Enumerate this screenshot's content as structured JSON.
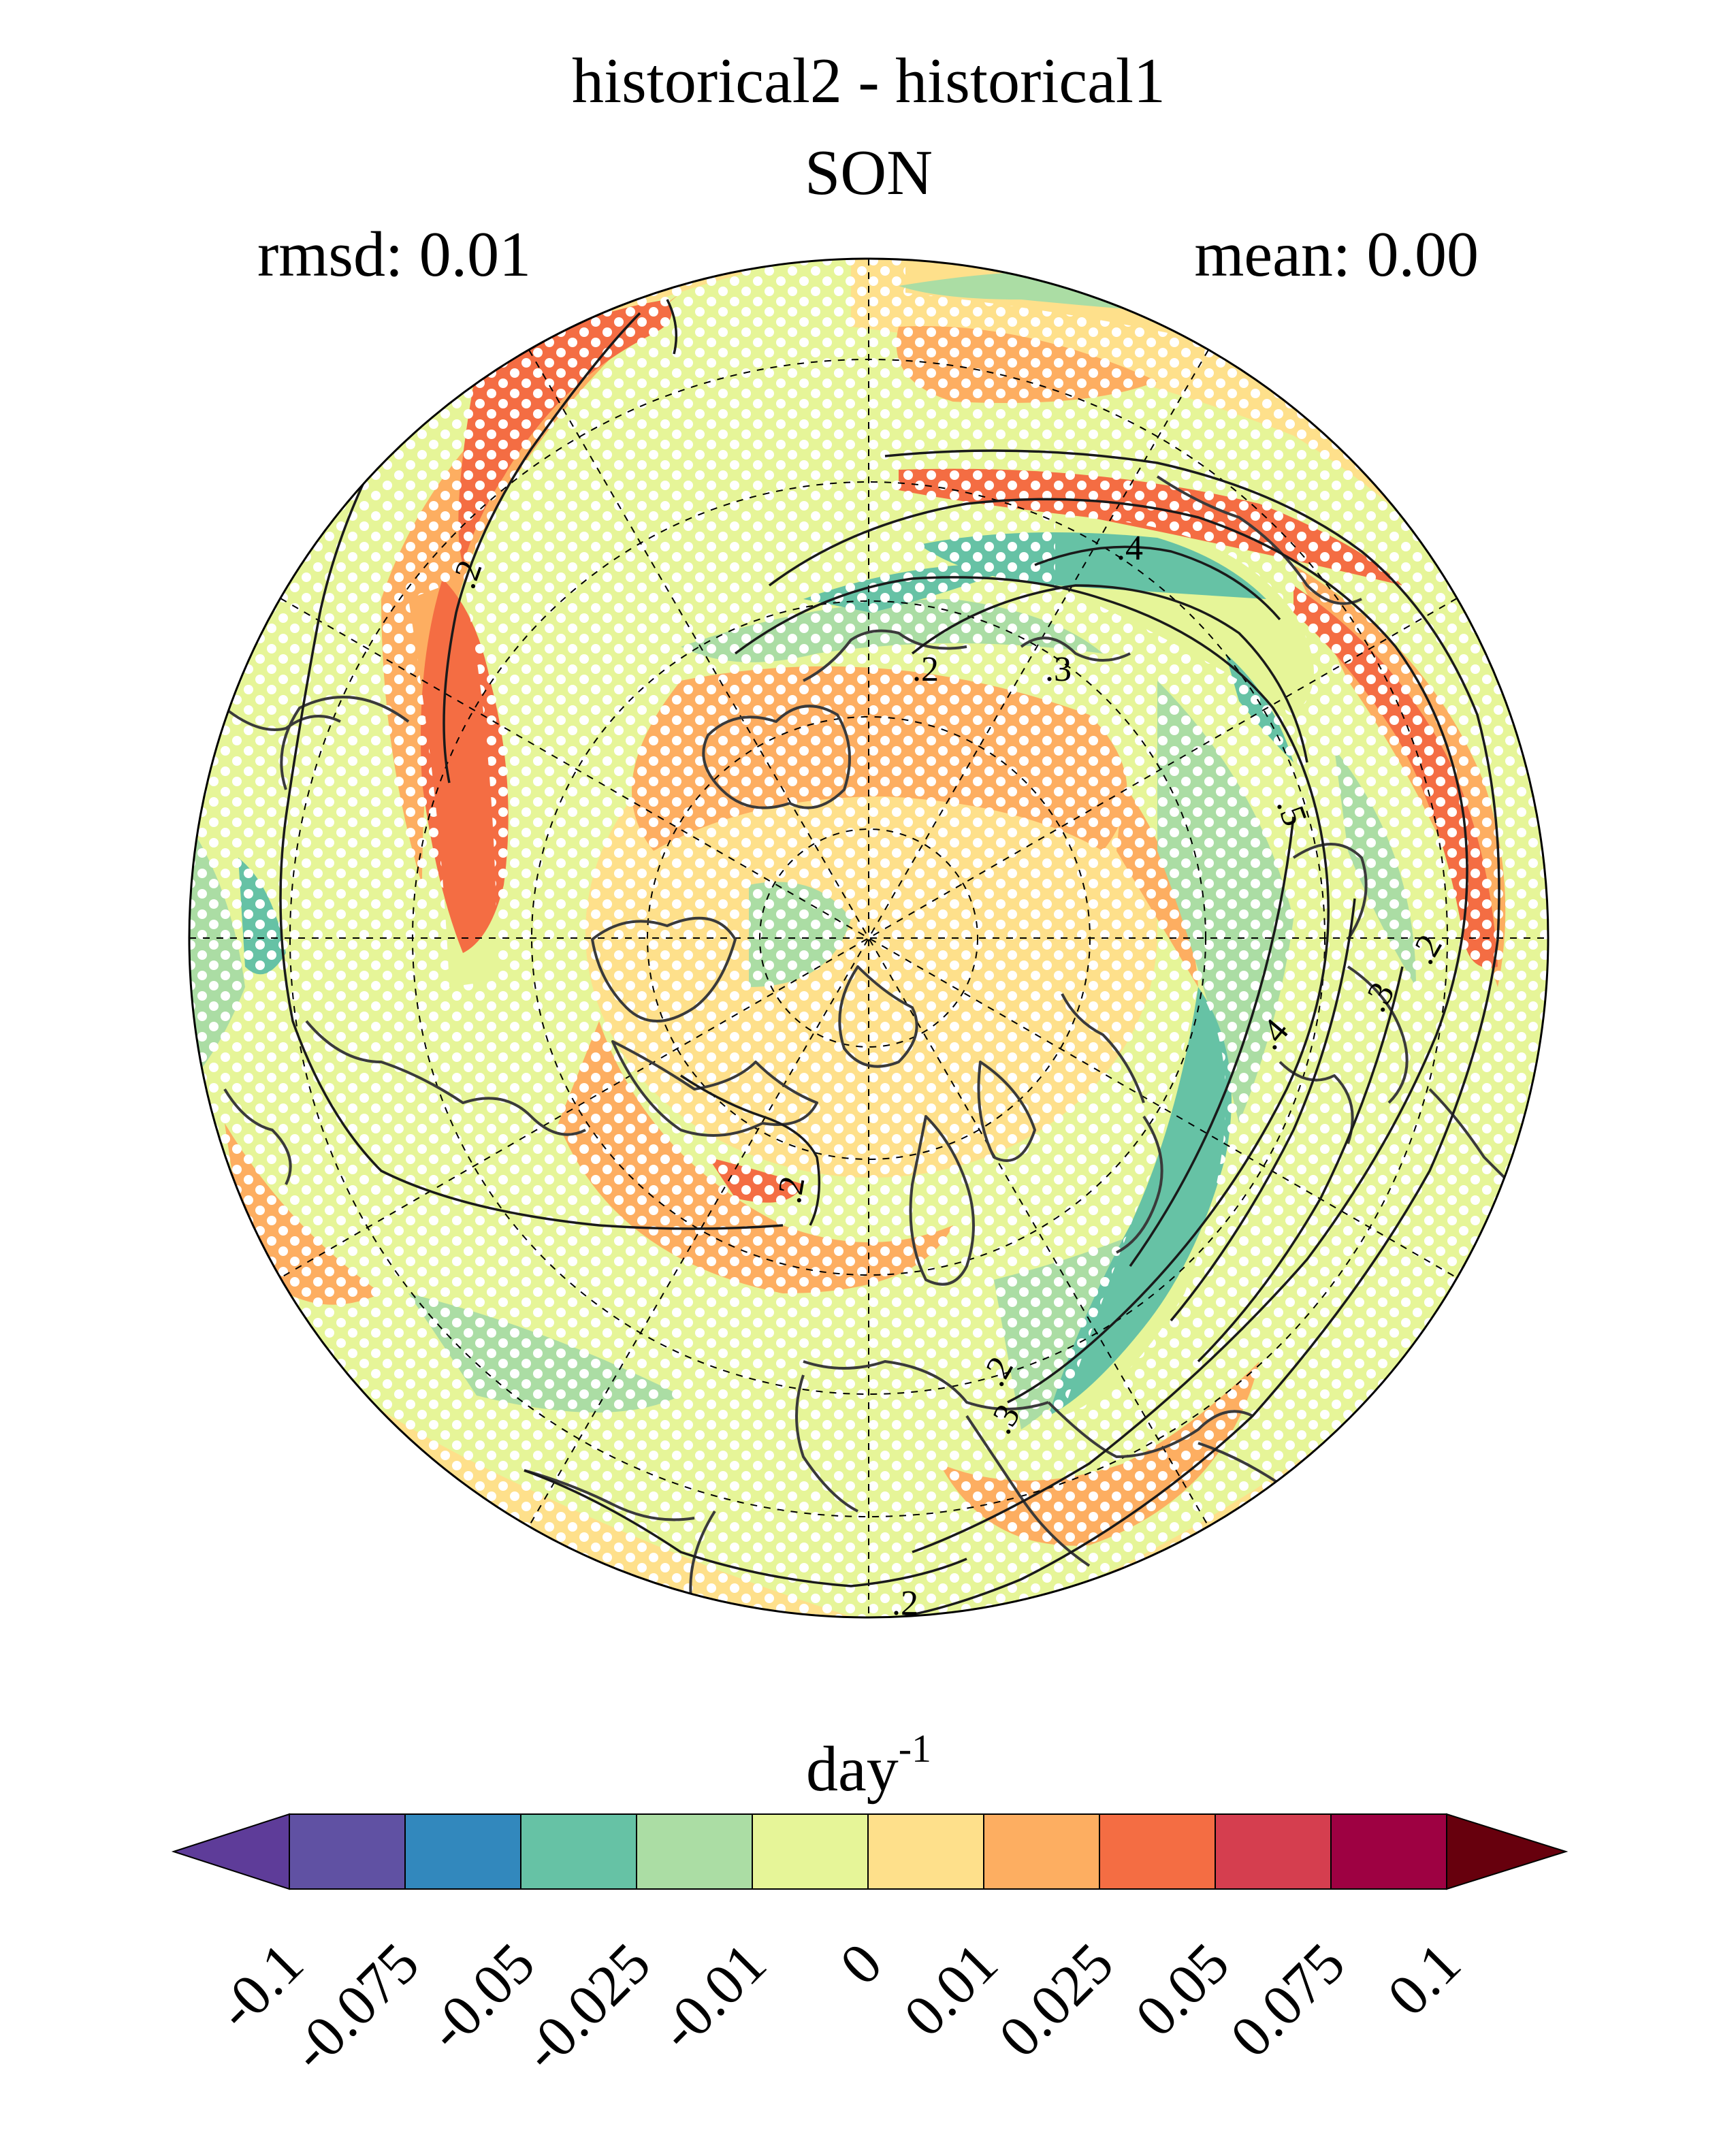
{
  "title": "historical2 - historical1",
  "subtitle": "SON",
  "stats": {
    "rmsd_label": "rmsd: 0.01",
    "mean_label": "mean: 0.00"
  },
  "colorbar": {
    "unit_base": "day",
    "unit_exp": "-1",
    "ticks": [
      "-0.1",
      "-0.075",
      "-0.05",
      "-0.025",
      "-0.01",
      "0",
      "0.01",
      "0.025",
      "0.05",
      "0.075",
      "0.1"
    ],
    "colors": [
      "#5e3c99",
      "#6051a3",
      "#3288bd",
      "#66c2a5",
      "#abdda4",
      "#e6f598",
      "#fee08b",
      "#fdae61",
      "#f46d43",
      "#d53e4f",
      "#9e0142",
      "#67000d"
    ]
  },
  "contour_labels": [
    ".2",
    ".2",
    ".2",
    ".2",
    ".3",
    ".4",
    ".5",
    ".4",
    ".3",
    ".2",
    ".2",
    ".3"
  ],
  "map": {
    "projection": "north-polar-stereographic",
    "field_colors": {
      "strong_positive": "#f46d43",
      "positive": "#fdae61",
      "weak_positive": "#fee08b",
      "near_zero": "#e6f598",
      "weak_negative": "#abdda4",
      "negative": "#66c2a5"
    },
    "stipple_color": "#ffffff",
    "coastline_color": "#3a3a3a",
    "contour_color": "#1a1a1a"
  }
}
